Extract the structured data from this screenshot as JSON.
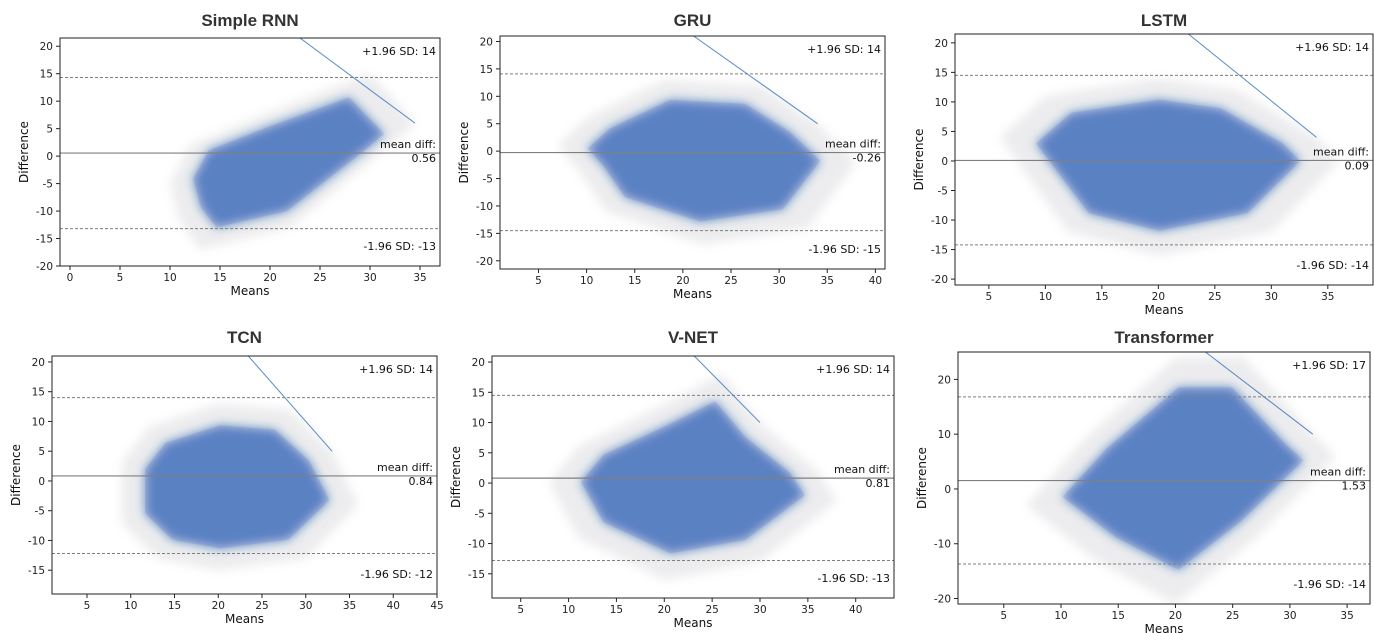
{
  "colors": {
    "point": "#2f6fb5",
    "point_edge": "#6a5acd",
    "axis": "#222222",
    "mean_line": "#7f7f7f",
    "sd_line": "#7f7f7f"
  },
  "chart_data": [
    {
      "type": "scatter",
      "title": "Simple RNN",
      "xlabel": "Means",
      "ylabel": "Difference",
      "xlim": [
        -1,
        37
      ],
      "ylim": [
        -20,
        21.5
      ],
      "xticks": [
        0,
        5,
        10,
        15,
        20,
        25,
        30,
        35
      ],
      "yticks": [
        -20,
        -15,
        -10,
        -5,
        0,
        5,
        10,
        15,
        20
      ],
      "mean_diff": 0.56,
      "upper_sd": 14.3,
      "lower_sd": -13.2,
      "mean_label": "mean diff:",
      "mean_value": "0.56",
      "upper_label": "+1.96 SD: 14",
      "lower_label": "-1.96 SD: -13",
      "grid": false,
      "cloud": [
        [
          10,
          -5
        ],
        [
          12,
          2
        ],
        [
          20,
          8
        ],
        [
          30,
          15
        ],
        [
          34.5,
          6
        ],
        [
          32,
          2
        ],
        [
          22,
          -13
        ],
        [
          13,
          -17
        ],
        [
          11,
          -12
        ]
      ]
    },
    {
      "type": "scatter",
      "title": "GRU",
      "xlabel": "Means",
      "ylabel": "Difference",
      "xlim": [
        1,
        41
      ],
      "ylim": [
        -21.5,
        21
      ],
      "xticks": [
        5,
        10,
        15,
        20,
        25,
        30,
        35,
        40
      ],
      "yticks": [
        -20,
        -15,
        -10,
        -5,
        0,
        5,
        10,
        15,
        20
      ],
      "mean_diff": -0.26,
      "upper_sd": 14.1,
      "lower_sd": -14.5,
      "mean_label": "mean diff:",
      "mean_value": "-0.26",
      "upper_label": "+1.96 SD: 14",
      "lower_label": "-1.96 SD: -15",
      "grid": false,
      "cloud": [
        [
          7,
          1
        ],
        [
          10,
          6
        ],
        [
          18,
          13
        ],
        [
          28,
          12
        ],
        [
          34,
          5
        ],
        [
          38,
          -2
        ],
        [
          33,
          -14
        ],
        [
          22,
          -17
        ],
        [
          12,
          -11
        ],
        [
          9,
          -3
        ]
      ]
    },
    {
      "type": "scatter",
      "title": "LSTM",
      "xlabel": "Means",
      "ylabel": "Difference",
      "xlim": [
        2,
        39
      ],
      "ylim": [
        -21,
        21.5
      ],
      "xticks": [
        5,
        10,
        15,
        20,
        25,
        30,
        35
      ],
      "yticks": [
        -20,
        -15,
        -10,
        -5,
        0,
        5,
        10,
        15,
        20
      ],
      "mean_diff": 0.09,
      "upper_sd": 14.5,
      "lower_sd": -14.2,
      "mean_label": "mean diff:",
      "mean_value": "0.09",
      "upper_label": "+1.96 SD: 14",
      "lower_label": "-1.96 SD: -14",
      "grid": false,
      "cloud": [
        [
          6,
          4
        ],
        [
          10,
          11
        ],
        [
          20,
          14
        ],
        [
          27,
          12
        ],
        [
          34,
          4
        ],
        [
          36,
          0
        ],
        [
          30,
          -12
        ],
        [
          20,
          -16
        ],
        [
          12,
          -12
        ],
        [
          9,
          -4
        ]
      ]
    },
    {
      "type": "scatter",
      "title": "TCN",
      "xlabel": "Means",
      "ylabel": "Difference",
      "xlim": [
        1,
        45
      ],
      "ylim": [
        -19,
        21
      ],
      "xticks": [
        5,
        10,
        15,
        20,
        25,
        30,
        35,
        40,
        45
      ],
      "yticks": [
        -15,
        -10,
        -5,
        0,
        5,
        10,
        15,
        20
      ],
      "mean_diff": 0.84,
      "upper_sd": 14.0,
      "lower_sd": -12.2,
      "mean_label": "mean diff:",
      "mean_value": "0.84",
      "upper_label": "+1.96 SD: 14",
      "lower_label": "-1.96 SD: -12",
      "grid": false,
      "cloud": [
        [
          9,
          3
        ],
        [
          12,
          9
        ],
        [
          20,
          13
        ],
        [
          28,
          12
        ],
        [
          33,
          5
        ],
        [
          36,
          -4
        ],
        [
          30,
          -13
        ],
        [
          20,
          -15
        ],
        [
          13,
          -13
        ],
        [
          9,
          -7
        ]
      ]
    },
    {
      "type": "scatter",
      "title": "V-NET",
      "xlabel": "Means",
      "ylabel": "Difference",
      "xlim": [
        2,
        44
      ],
      "ylim": [
        -19,
        21
      ],
      "xticks": [
        5,
        10,
        15,
        20,
        25,
        30,
        35,
        40
      ],
      "yticks": [
        -15,
        -10,
        -5,
        0,
        5,
        10,
        15,
        20
      ],
      "mean_diff": 0.81,
      "upper_sd": 14.5,
      "lower_sd": -12.8,
      "mean_label": "mean diff:",
      "mean_value": "0.81",
      "upper_label": "+1.96 SD: 14",
      "lower_label": "-1.96 SD: -13",
      "grid": false,
      "cloud": [
        [
          8,
          0
        ],
        [
          11,
          6
        ],
        [
          20,
          13
        ],
        [
          26,
          18
        ],
        [
          30,
          10
        ],
        [
          36,
          2
        ],
        [
          38,
          -3
        ],
        [
          30,
          -13
        ],
        [
          20,
          -16
        ],
        [
          11,
          -9
        ]
      ]
    },
    {
      "type": "scatter",
      "title": "Transformer",
      "xlabel": "Means",
      "ylabel": "Difference",
      "xlim": [
        1,
        37
      ],
      "ylim": [
        -21,
        25
      ],
      "xticks": [
        5,
        10,
        15,
        20,
        25,
        30,
        35
      ],
      "yticks": [
        -20,
        -10,
        0,
        10,
        20
      ],
      "mean_diff": 1.53,
      "upper_sd": 16.8,
      "lower_sd": -13.7,
      "mean_label": "mean diff:",
      "mean_value": "1.53",
      "upper_label": "+1.96 SD: 17",
      "lower_label": "-1.96 SD: -14",
      "grid": false,
      "cloud": [
        [
          7,
          -3
        ],
        [
          12,
          9
        ],
        [
          20,
          24
        ],
        [
          26,
          24
        ],
        [
          32,
          10
        ],
        [
          34,
          6
        ],
        [
          27,
          -9
        ],
        [
          20,
          -21
        ],
        [
          13,
          -13
        ]
      ]
    }
  ]
}
